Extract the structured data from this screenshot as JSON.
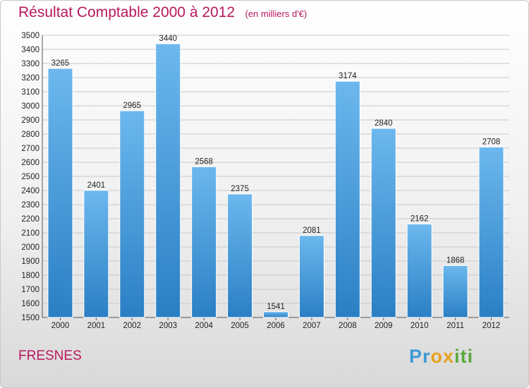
{
  "header": {
    "title": "Résultat Comptable 2000 à 2012",
    "unit": "(en milliers d'€)"
  },
  "footer": {
    "city": "FRESNES",
    "logo": [
      "P",
      "r",
      "o",
      "x",
      "i",
      "t",
      "i"
    ]
  },
  "colors": {
    "title": "#b8185e",
    "bar_top": "#6cb8ee",
    "bar_bottom": "#2a7fc4",
    "logo": [
      "#3c9ad6",
      "#3c9ad6",
      "#e8a020",
      "#e8a020",
      "#5aa83c",
      "#5aa83c",
      "#5aa83c"
    ]
  },
  "chart_data": {
    "type": "bar",
    "title": "Résultat Comptable 2000 à 2012",
    "subtitle": "(en milliers d'€)",
    "categories": [
      "2000",
      "2001",
      "2002",
      "2003",
      "2004",
      "2005",
      "2006",
      "2007",
      "2008",
      "2009",
      "2010",
      "2011",
      "2012"
    ],
    "values": [
      3265,
      2401,
      2965,
      3440,
      2568,
      2375,
      1541,
      2081,
      3174,
      2840,
      2162,
      1868,
      2708
    ],
    "ylim": [
      1500,
      3500
    ],
    "yticks": [
      1500,
      1600,
      1700,
      1800,
      1900,
      2000,
      2100,
      2200,
      2300,
      2400,
      2500,
      2600,
      2700,
      2800,
      2900,
      3000,
      3100,
      3200,
      3300,
      3400,
      3500
    ],
    "xlabel": "",
    "ylabel": "",
    "grid": true
  }
}
